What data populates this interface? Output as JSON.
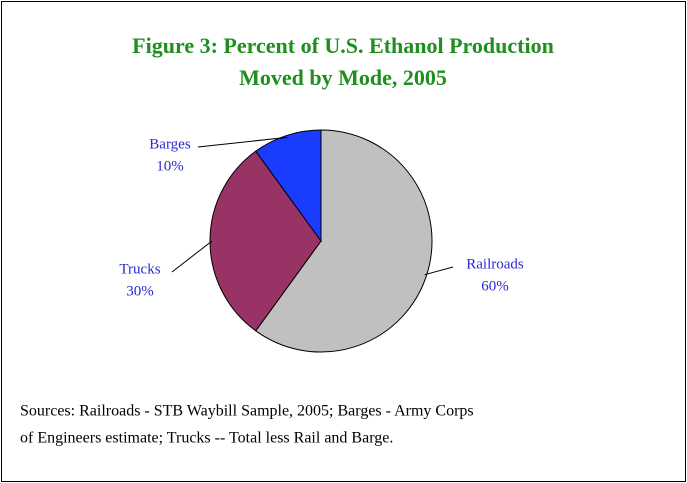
{
  "chart_data": {
    "type": "pie",
    "title": [
      "Figure 3:  Percent of U.S. Ethanol Production",
      "Moved by Mode, 2005"
    ],
    "categories": [
      "Railroads",
      "Trucks",
      "Barges"
    ],
    "values": [
      60,
      30,
      10
    ],
    "value_labels": [
      "60%",
      "30%",
      "10%"
    ],
    "colors": [
      "#c0c0c0",
      "#993366",
      "#1a3cff"
    ],
    "source": [
      "Sources:  Railroads - STB Waybill Sample, 2005;  Barges - Army Corps",
      "of Engineers estimate;  Trucks -- Total less Rail and Barge."
    ]
  }
}
